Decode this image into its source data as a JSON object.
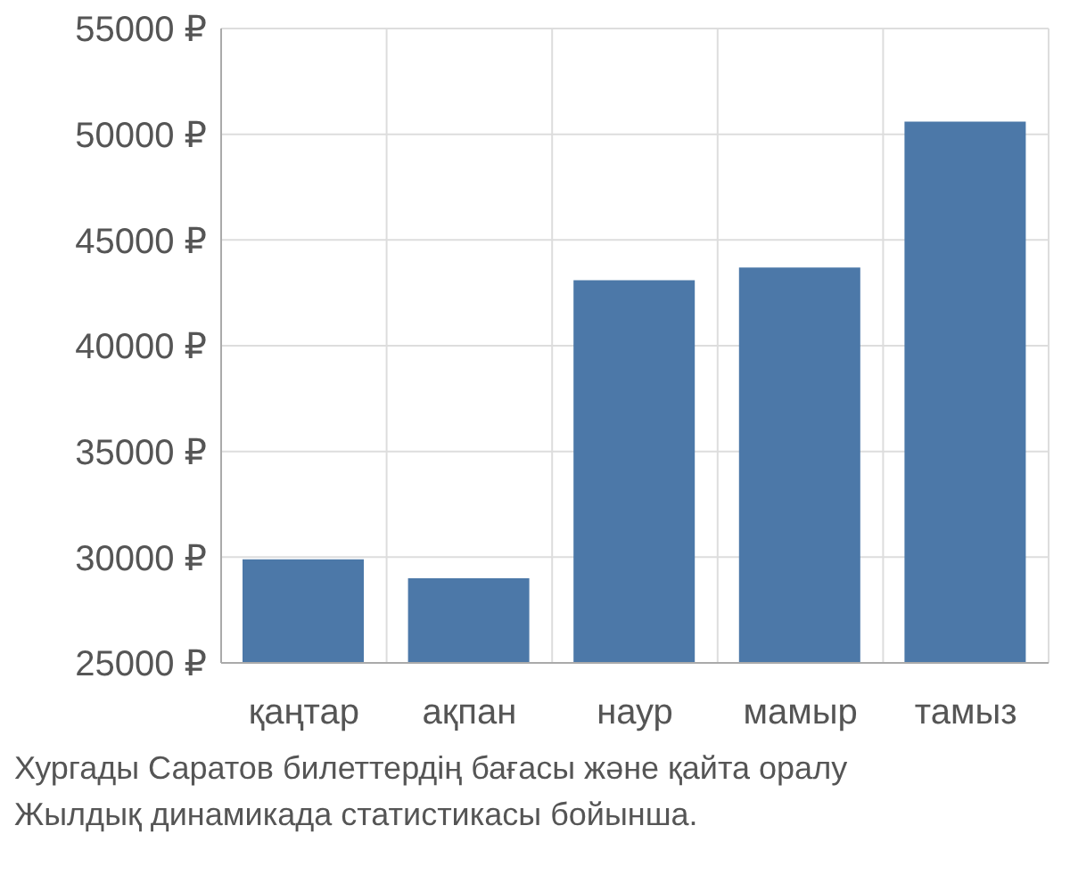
{
  "chart_data": {
    "type": "bar",
    "title": "Хургады Саратов билеттердің бағасы және қайта оралу",
    "subtitle": "Жылдық динамикада статистикасы бойынша.",
    "categories": [
      "қаңтар",
      "ақпан",
      "наур",
      "мамыр",
      "тамыз"
    ],
    "values": [
      29900,
      29000,
      43100,
      43700,
      50600
    ],
    "color": "#4c78a8",
    "ylim": [
      25000,
      55000
    ],
    "yticks": [
      {
        "value": 25000,
        "label": "25000 ₽"
      },
      {
        "value": 30000,
        "label": "30000 ₽"
      },
      {
        "value": 35000,
        "label": "35000 ₽"
      },
      {
        "value": 40000,
        "label": "40000 ₽"
      },
      {
        "value": 45000,
        "label": "45000 ₽"
      },
      {
        "value": 50000,
        "label": "50000 ₽"
      },
      {
        "value": 55000,
        "label": "55000 ₽"
      }
    ],
    "grid": true
  }
}
